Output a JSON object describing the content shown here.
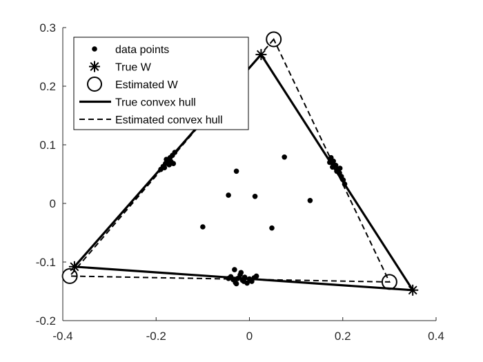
{
  "chart_data": {
    "type": "scatter",
    "xlim": [
      -0.4,
      0.4
    ],
    "ylim": [
      -0.2,
      0.3
    ],
    "xticks": [
      -0.4,
      -0.2,
      0,
      0.2,
      0.4
    ],
    "yticks": [
      -0.2,
      -0.1,
      0,
      0.1,
      0.2,
      0.3
    ],
    "xtick_labels": [
      "-0.4",
      "-0.2",
      "0",
      "0.2",
      "0.4"
    ],
    "ytick_labels": [
      "-0.2",
      "-0.1",
      "0",
      "0.1",
      "0.2",
      "0.3"
    ],
    "grid": false,
    "legend_position": "top-left",
    "legend": [
      {
        "label": "data points",
        "marker": "dot"
      },
      {
        "label": "True W",
        "marker": "asterisk"
      },
      {
        "label": "Estimated W",
        "marker": "circle"
      },
      {
        "label": "True convex hull",
        "marker": "solid-line"
      },
      {
        "label": "Estimated convex hull",
        "marker": "dashed-line"
      }
    ],
    "true_W": [
      {
        "x": 0.025,
        "y": 0.254
      },
      {
        "x": -0.375,
        "y": -0.108
      },
      {
        "x": 0.35,
        "y": -0.148
      }
    ],
    "estimated_W": [
      {
        "x": 0.052,
        "y": 0.28
      },
      {
        "x": -0.385,
        "y": -0.124
      },
      {
        "x": 0.3,
        "y": -0.134
      }
    ],
    "data_points": [
      {
        "x": -0.19,
        "y": 0.058
      },
      {
        "x": -0.185,
        "y": 0.063
      },
      {
        "x": -0.18,
        "y": 0.068
      },
      {
        "x": -0.175,
        "y": 0.073
      },
      {
        "x": -0.17,
        "y": 0.078
      },
      {
        "x": -0.165,
        "y": 0.082
      },
      {
        "x": -0.16,
        "y": 0.087
      },
      {
        "x": -0.182,
        "y": 0.061
      },
      {
        "x": -0.172,
        "y": 0.066
      },
      {
        "x": -0.168,
        "y": 0.071
      },
      {
        "x": -0.178,
        "y": 0.075
      },
      {
        "x": -0.163,
        "y": 0.068
      },
      {
        "x": 0.175,
        "y": 0.078
      },
      {
        "x": 0.18,
        "y": 0.072
      },
      {
        "x": 0.185,
        "y": 0.065
      },
      {
        "x": 0.19,
        "y": 0.058
      },
      {
        "x": 0.193,
        "y": 0.052
      },
      {
        "x": 0.197,
        "y": 0.046
      },
      {
        "x": 0.201,
        "y": 0.04
      },
      {
        "x": 0.204,
        "y": 0.033
      },
      {
        "x": 0.172,
        "y": 0.07
      },
      {
        "x": 0.178,
        "y": 0.062
      },
      {
        "x": 0.187,
        "y": 0.055
      },
      {
        "x": 0.194,
        "y": 0.06
      },
      {
        "x": -0.04,
        "y": -0.125
      },
      {
        "x": -0.035,
        "y": -0.13
      },
      {
        "x": -0.03,
        "y": -0.135
      },
      {
        "x": -0.025,
        "y": -0.128
      },
      {
        "x": -0.02,
        "y": -0.122
      },
      {
        "x": -0.015,
        "y": -0.131
      },
      {
        "x": -0.01,
        "y": -0.126
      },
      {
        "x": -0.005,
        "y": -0.136
      },
      {
        "x": 0.0,
        "y": -0.129
      },
      {
        "x": 0.005,
        "y": -0.133
      },
      {
        "x": 0.01,
        "y": -0.127
      },
      {
        "x": -0.032,
        "y": -0.113
      },
      {
        "x": -0.018,
        "y": -0.118
      },
      {
        "x": -0.045,
        "y": -0.128
      },
      {
        "x": 0.015,
        "y": -0.124
      },
      {
        "x": -0.028,
        "y": -0.137
      },
      {
        "x": -0.012,
        "y": -0.133
      },
      {
        "x": -0.028,
        "y": 0.055
      },
      {
        "x": 0.075,
        "y": 0.079
      },
      {
        "x": -0.045,
        "y": 0.014
      },
      {
        "x": 0.012,
        "y": 0.012
      },
      {
        "x": 0.13,
        "y": 0.005
      },
      {
        "x": -0.1,
        "y": -0.04
      },
      {
        "x": 0.048,
        "y": -0.042
      }
    ],
    "colors": {
      "ink": "#000000",
      "axis": "#262626",
      "background": "#ffffff"
    }
  }
}
